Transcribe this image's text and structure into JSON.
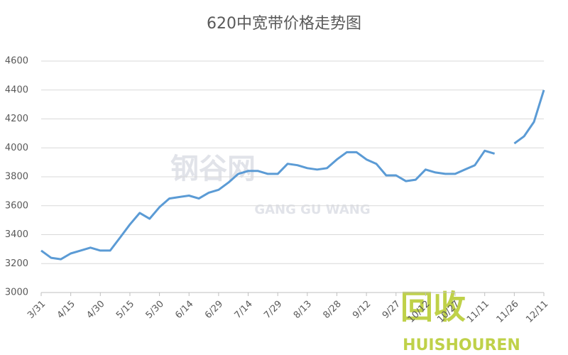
{
  "chart_data": {
    "type": "line",
    "title": "620中宽带价格走势图",
    "categories": [
      "3/31",
      null,
      null,
      "4/15",
      null,
      null,
      "4/30",
      null,
      null,
      "5/15",
      null,
      null,
      "5/30",
      null,
      null,
      "6/14",
      null,
      null,
      "6/29",
      null,
      null,
      "7/14",
      null,
      null,
      "7/29",
      null,
      null,
      "8/13",
      null,
      null,
      "8/28",
      null,
      null,
      "9/12",
      null,
      null,
      "9/27",
      null,
      null,
      "10/12",
      null,
      null,
      "10/27",
      null,
      null,
      "11/11",
      null,
      null,
      "11/26",
      null,
      null,
      "12/11"
    ],
    "series": [
      {
        "name": "620中宽带",
        "color": "#5b9bd5",
        "values": [
          3290,
          3240,
          3230,
          3270,
          3290,
          3310,
          3290,
          3290,
          3380,
          3470,
          3550,
          3510,
          3590,
          3650,
          3660,
          3670,
          3650,
          3690,
          3710,
          3760,
          3820,
          3840,
          3840,
          3820,
          3820,
          3890,
          3880,
          3860,
          3850,
          3860,
          3920,
          3970,
          3970,
          3920,
          3890,
          3810,
          3810,
          3770,
          3780,
          3850,
          3830,
          3820,
          3820,
          3850,
          3880,
          3980,
          3960,
          null,
          4030,
          4080,
          4180,
          4400
        ]
      }
    ],
    "ylim": [
      3000,
      4600
    ],
    "yticks": [
      3000,
      3200,
      3400,
      3600,
      3800,
      4000,
      4200,
      4400,
      4600
    ],
    "grid": true,
    "watermarks": [
      "钢谷网",
      "GANG GU WANG",
      "回收",
      "HUISHOUREN"
    ]
  }
}
